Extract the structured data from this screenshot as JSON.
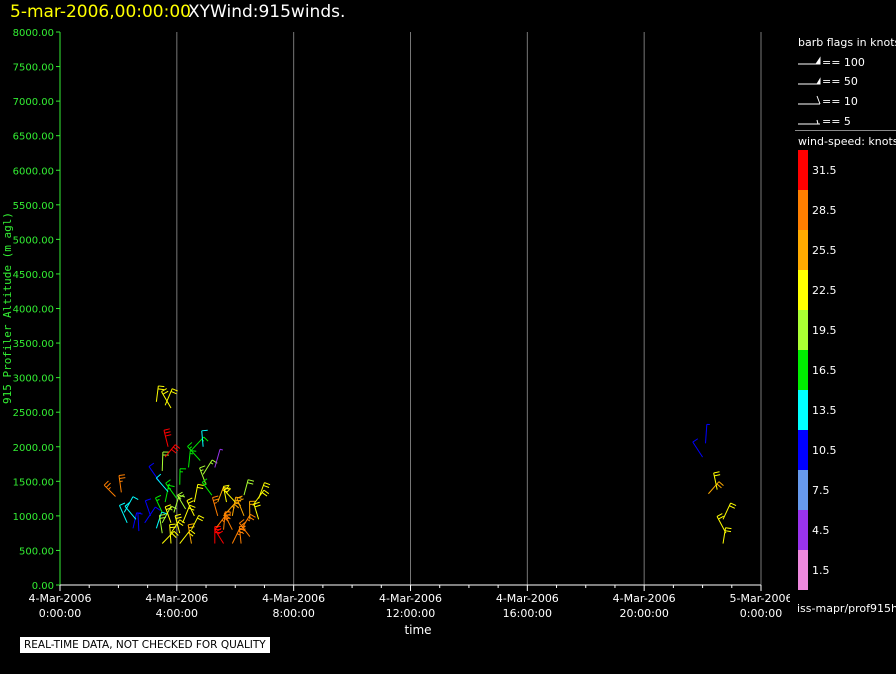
{
  "header": {
    "date": "5-mar-2006,00:00:00",
    "product": "XYWind:915winds."
  },
  "chart_data": {
    "type": "scatter",
    "subtype": "wind-barb time-height",
    "xlabel": "time",
    "ylabel": "915 Profiler Altitude (m agl)",
    "ylim": [
      0,
      8000
    ],
    "yticks": [
      "0.00",
      "500.00",
      "1000.00",
      "1500.00",
      "2000.00",
      "2500.00",
      "3000.00",
      "3500.00",
      "4000.00",
      "4500.00",
      "5000.00",
      "5500.00",
      "6000.00",
      "6500.00",
      "7000.00",
      "7500.00",
      "8000.00"
    ],
    "xlim_hours": [
      0,
      24
    ],
    "xticks": [
      {
        "date": "4-Mar-2006",
        "time": "0:00:00"
      },
      {
        "date": "4-Mar-2006",
        "time": "4:00:00"
      },
      {
        "date": "4-Mar-2006",
        "time": "8:00:00"
      },
      {
        "date": "4-Mar-2006",
        "time": "12:00:00"
      },
      {
        "date": "4-Mar-2006",
        "time": "16:00:00"
      },
      {
        "date": "4-Mar-2006",
        "time": "20:00:00"
      },
      {
        "date": "5-Mar-2006",
        "time": "0:00:00"
      }
    ],
    "grid": "vertical",
    "barb_scale_title": "barb flags in knots",
    "barb_scale": [
      "== 100",
      "== 50",
      "== 10",
      "== 5"
    ],
    "colorbar_title": "wind-speed: knots",
    "colorbar": [
      {
        "label": "31.5",
        "color": "#ff0000"
      },
      {
        "label": "28.5",
        "color": "#ff7f00"
      },
      {
        "label": "25.5",
        "color": "#ffaa00"
      },
      {
        "label": "22.5",
        "color": "#ffff00"
      },
      {
        "label": "19.5",
        "color": "#aaff33"
      },
      {
        "label": "16.5",
        "color": "#00ee00"
      },
      {
        "label": "13.5",
        "color": "#00ffff"
      },
      {
        "label": "10.5",
        "color": "#0000ff"
      },
      {
        "label": "7.5",
        "color": "#6699ee"
      },
      {
        "label": "4.5",
        "color": "#9933ee"
      },
      {
        "label": "1.5",
        "color": "#ee88dd"
      }
    ],
    "barbs": [
      {
        "t": 1.9,
        "z": 1280,
        "speed": 27
      },
      {
        "t": 2.1,
        "z": 1340,
        "speed": 28
      },
      {
        "t": 2.2,
        "z": 1050,
        "speed": 13
      },
      {
        "t": 2.3,
        "z": 900,
        "speed": 12
      },
      {
        "t": 2.5,
        "z": 820,
        "speed": 10
      },
      {
        "t": 2.6,
        "z": 950,
        "speed": 12
      },
      {
        "t": 2.7,
        "z": 780,
        "speed": 9
      },
      {
        "t": 2.9,
        "z": 900,
        "speed": 11
      },
      {
        "t": 3.1,
        "z": 1000,
        "speed": 10
      },
      {
        "t": 3.3,
        "z": 820,
        "speed": 12
      },
      {
        "t": 3.4,
        "z": 1500,
        "speed": 10
      },
      {
        "t": 3.5,
        "z": 1650,
        "speed": 20
      },
      {
        "t": 3.6,
        "z": 1850,
        "speed": 31
      },
      {
        "t": 3.7,
        "z": 2000,
        "speed": 30
      },
      {
        "t": 3.6,
        "z": 2600,
        "speed": 21
      },
      {
        "t": 3.8,
        "z": 2560,
        "speed": 23
      },
      {
        "t": 3.3,
        "z": 2650,
        "speed": 22
      },
      {
        "t": 3.5,
        "z": 600,
        "speed": 22
      },
      {
        "t": 3.5,
        "z": 750,
        "speed": 20
      },
      {
        "t": 3.5,
        "z": 900,
        "speed": 19
      },
      {
        "t": 3.5,
        "z": 1050,
        "speed": 17
      },
      {
        "t": 3.6,
        "z": 1200,
        "speed": 16
      },
      {
        "t": 3.7,
        "z": 1350,
        "speed": 14
      },
      {
        "t": 3.8,
        "z": 600,
        "speed": 23
      },
      {
        "t": 3.8,
        "z": 750,
        "speed": 22
      },
      {
        "t": 3.8,
        "z": 900,
        "speed": 21
      },
      {
        "t": 3.9,
        "z": 1050,
        "speed": 19
      },
      {
        "t": 4.0,
        "z": 1250,
        "speed": 17
      },
      {
        "t": 4.1,
        "z": 1450,
        "speed": 15
      },
      {
        "t": 4.1,
        "z": 600,
        "speed": 22
      },
      {
        "t": 4.1,
        "z": 750,
        "speed": 23
      },
      {
        "t": 4.2,
        "z": 900,
        "speed": 22
      },
      {
        "t": 4.3,
        "z": 1100,
        "speed": 20
      },
      {
        "t": 4.4,
        "z": 1700,
        "speed": 17
      },
      {
        "t": 4.5,
        "z": 1950,
        "speed": 15
      },
      {
        "t": 4.5,
        "z": 600,
        "speed": 24
      },
      {
        "t": 4.5,
        "z": 800,
        "speed": 23
      },
      {
        "t": 4.6,
        "z": 1000,
        "speed": 22
      },
      {
        "t": 4.6,
        "z": 1200,
        "speed": 21
      },
      {
        "t": 4.8,
        "z": 1800,
        "speed": 16
      },
      {
        "t": 4.9,
        "z": 2000,
        "speed": 14
      },
      {
        "t": 4.9,
        "z": 1600,
        "speed": 18
      },
      {
        "t": 5.0,
        "z": 1450,
        "speed": 19
      },
      {
        "t": 5.3,
        "z": 1700,
        "speed": 5
      },
      {
        "t": 5.2,
        "z": 1300,
        "speed": 16
      },
      {
        "t": 5.3,
        "z": 600,
        "speed": 30
      },
      {
        "t": 5.3,
        "z": 800,
        "speed": 29
      },
      {
        "t": 5.4,
        "z": 1000,
        "speed": 27
      },
      {
        "t": 5.4,
        "z": 1200,
        "speed": 24
      },
      {
        "t": 5.6,
        "z": 600,
        "speed": 30
      },
      {
        "t": 5.6,
        "z": 800,
        "speed": 28
      },
      {
        "t": 5.6,
        "z": 1000,
        "speed": 26
      },
      {
        "t": 5.7,
        "z": 1200,
        "speed": 22
      },
      {
        "t": 5.9,
        "z": 600,
        "speed": 29
      },
      {
        "t": 5.9,
        "z": 800,
        "speed": 27
      },
      {
        "t": 5.9,
        "z": 1000,
        "speed": 25
      },
      {
        "t": 6.0,
        "z": 1200,
        "speed": 21
      },
      {
        "t": 6.2,
        "z": 600,
        "speed": 28
      },
      {
        "t": 6.2,
        "z": 800,
        "speed": 27
      },
      {
        "t": 6.3,
        "z": 1000,
        "speed": 24
      },
      {
        "t": 6.3,
        "z": 1300,
        "speed": 20
      },
      {
        "t": 6.5,
        "z": 700,
        "speed": 27
      },
      {
        "t": 6.5,
        "z": 950,
        "speed": 24
      },
      {
        "t": 6.6,
        "z": 1150,
        "speed": 22
      },
      {
        "t": 6.8,
        "z": 950,
        "speed": 23
      },
      {
        "t": 6.8,
        "z": 1250,
        "speed": 21
      },
      {
        "t": 22.0,
        "z": 1850,
        "speed": 10
      },
      {
        "t": 22.1,
        "z": 2050,
        "speed": 9
      },
      {
        "t": 22.2,
        "z": 1320,
        "speed": 24
      },
      {
        "t": 22.5,
        "z": 1380,
        "speed": 22
      },
      {
        "t": 22.7,
        "z": 950,
        "speed": 23
      },
      {
        "t": 22.8,
        "z": 750,
        "speed": 22
      },
      {
        "t": 22.7,
        "z": 600,
        "speed": 21
      }
    ]
  },
  "footer": {
    "source": "iss-mapr/prof915h",
    "disclaimer": "REAL-TIME DATA, NOT CHECKED FOR QUALITY"
  }
}
